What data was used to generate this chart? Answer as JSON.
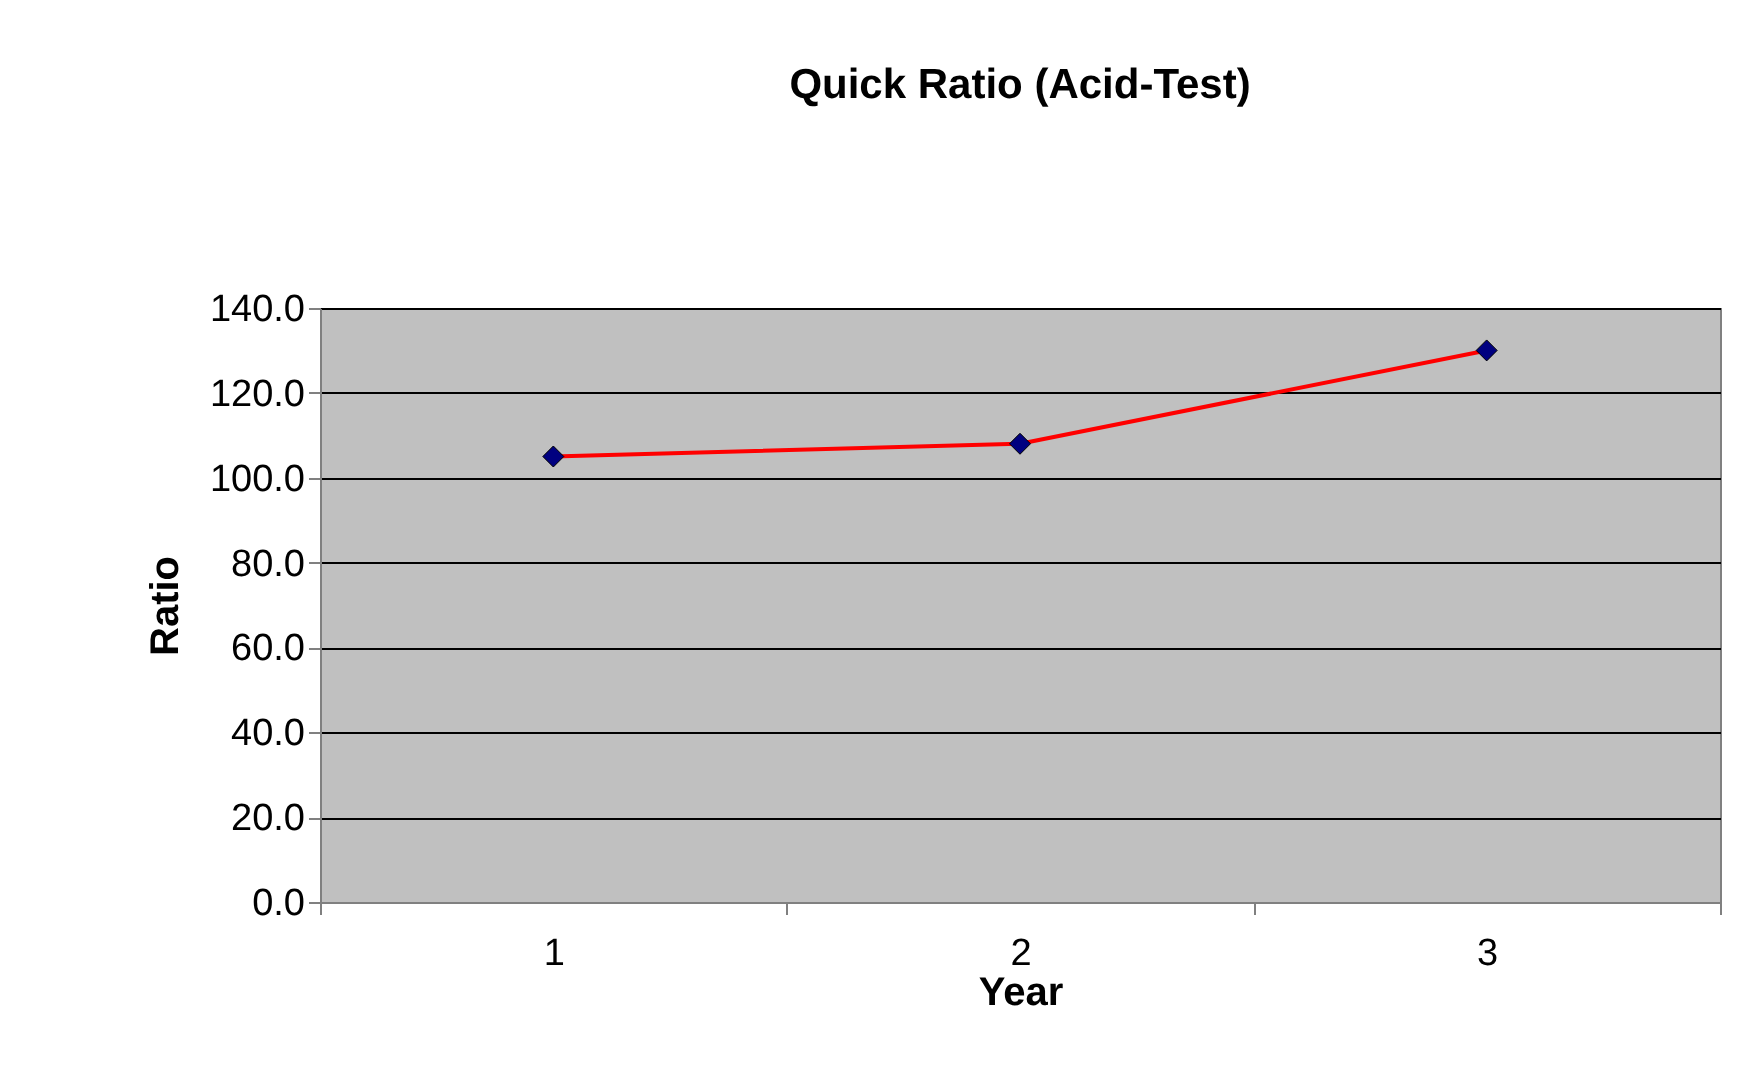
{
  "chart_data": {
    "type": "line",
    "title": "Quick Ratio (Acid-Test)",
    "xlabel": "Year",
    "ylabel": "Ratio",
    "categories": [
      "1",
      "2",
      "3"
    ],
    "series": [
      {
        "color": "#ff0000",
        "values": [
          105.0,
          108.0,
          130.0
        ]
      }
    ],
    "ylim": [
      0,
      140
    ],
    "yticks": [
      {
        "value": 0,
        "label": "0.0"
      },
      {
        "value": 20,
        "label": "20.0"
      },
      {
        "value": 40,
        "label": "40.0"
      },
      {
        "value": 60,
        "label": "60.0"
      },
      {
        "value": 80,
        "label": "80.0"
      },
      {
        "value": 100,
        "label": "100.0"
      },
      {
        "value": 120,
        "label": "120.0"
      },
      {
        "value": 140,
        "label": "140.0"
      }
    ],
    "grid": "y",
    "marker": "diamond",
    "line_style": "solid"
  }
}
